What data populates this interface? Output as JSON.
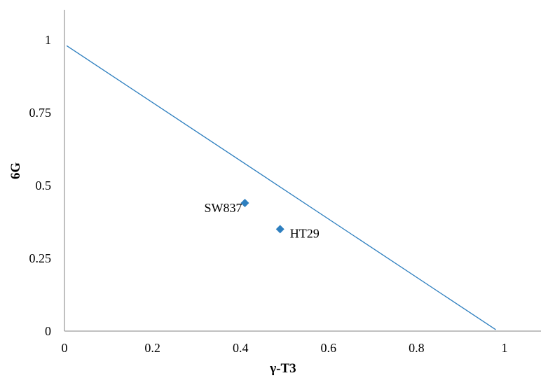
{
  "chart_data": {
    "type": "scatter",
    "xlabel": "γ-T3",
    "ylabel": "6G",
    "xlim": [
      0,
      1.06
    ],
    "ylim": [
      0,
      1.1
    ],
    "xticks": [
      "0",
      "0.2",
      "0.4",
      "0.6",
      "0.8",
      "1"
    ],
    "yticks": [
      "0",
      "0.25",
      "0.5",
      "0.75",
      "1"
    ],
    "grid": false,
    "points": [
      {
        "label": "SW837",
        "x": 0.41,
        "y": 0.44
      },
      {
        "label": "HT29",
        "x": 0.49,
        "y": 0.35
      }
    ],
    "line": {
      "x": [
        0.005,
        0.98
      ],
      "y": [
        0.98,
        0.005
      ]
    },
    "colors": {
      "series": "#2E7FBF",
      "axis": "#808080"
    }
  }
}
